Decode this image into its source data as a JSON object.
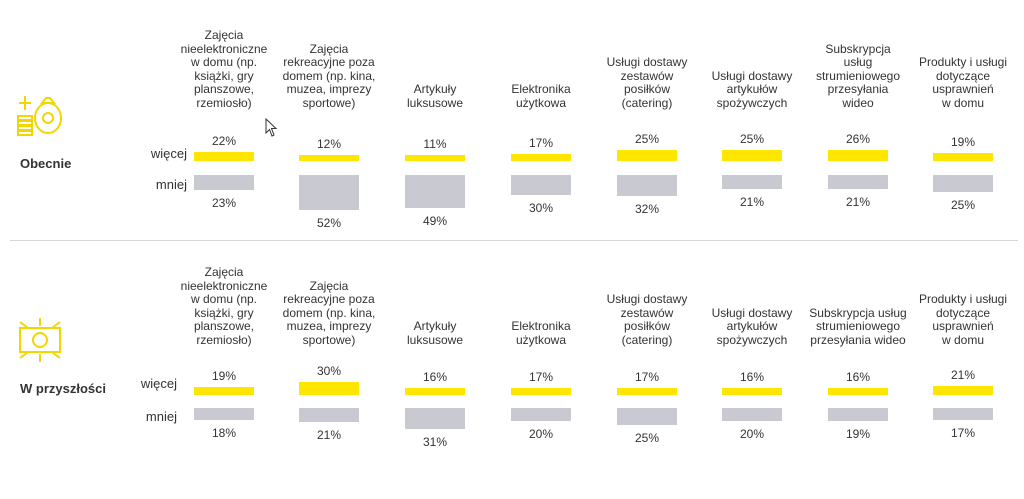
{
  "sections": [
    {
      "label": "Obecnie",
      "icon": "money-bag-coins-icon",
      "row_more": "więcej",
      "row_less": "mniej",
      "categories": [
        "Zajęcia\nnieelektroniczne\nw domu (np.\nksiążki, gry\nplanszowe,\nrzemiosło)",
        "Zajęcia\nrekreacyjne poza\ndomem (np. kina,\nmuzea, imprezy\nsportowe)",
        "Artykuły\nluksusowe",
        "Elektronika\nużytkowa",
        "Usługi dostawy\nzestawów\nposiłków\n(catering)",
        "Usługi dostawy\nartykułów\nspożywczych",
        "Subskrypcja\nusług\nstrumieniowego\nprzesyłania\nwideo",
        "Produkty i usługi\ndotyczące\nusprawnień\nw domu"
      ],
      "more": [
        22,
        12,
        11,
        17,
        25,
        25,
        26,
        19
      ],
      "less": [
        23,
        52,
        49,
        30,
        32,
        21,
        21,
        25
      ],
      "more_labels": [
        "22%",
        "12%",
        "11%",
        "17%",
        "25%",
        "25%",
        "26%",
        "19%"
      ],
      "less_labels": [
        "23%",
        "52%",
        "49%",
        "30%",
        "32%",
        "21%",
        "21%",
        "25%"
      ]
    },
    {
      "label": "W przyszłości",
      "icon": "banknote-icon",
      "row_more": "więcej",
      "row_less": "mniej",
      "categories": [
        "Zajęcia\nnieelektroniczne\nw domu (np.\nksiążki, gry\nplanszowe,\nrzemiosło)",
        "Zajęcia\nrekreacyjne poza\ndomem (np. kina,\nmuzea, imprezy\nsportowe)",
        "Artykuły\nluksusowe",
        "Elektronika\nużytkowa",
        "Usługi dostawy\nzestawów\nposiłków\n(catering)",
        "Usługi dostawy\nartykułów\nspożywczych",
        "Subskrypcja usług\nstrumieniowego\nprzesyłania wideo",
        "Produkty i usługi\ndotyczące\nusprawnień\nw domu"
      ],
      "more": [
        19,
        30,
        16,
        17,
        17,
        16,
        16,
        21
      ],
      "less": [
        18,
        21,
        31,
        20,
        25,
        20,
        19,
        17
      ],
      "more_labels": [
        "19%",
        "30%",
        "16%",
        "17%",
        "17%",
        "16%",
        "16%",
        "21%"
      ],
      "less_labels": [
        "18%",
        "21%",
        "31%",
        "20%",
        "25%",
        "20%",
        "19%",
        "17%"
      ]
    }
  ],
  "chart_data": [
    {
      "type": "bar",
      "categories": [
        "Zajęcia nieelektroniczne w domu (np. książki, gry planszowe, rzemiosło)",
        "Zajęcia rekreacyjne poza domem (np. kina, muzea, imprezy sportowe)",
        "Artykuły luksusowe",
        "Elektronika użytkowa",
        "Usługi dostawy zestawów posiłków (catering)",
        "Usługi dostawy artykułów spożywczych",
        "Subskrypcja usług strumieniowego przesyłania wideo",
        "Produkty i usługi dotyczące usprawnień w domu"
      ],
      "series": [
        {
          "name": "więcej",
          "values": [
            22,
            12,
            11,
            17,
            25,
            25,
            26,
            19
          ]
        },
        {
          "name": "mniej",
          "values": [
            23,
            52,
            49,
            30,
            32,
            21,
            21,
            25
          ]
        }
      ],
      "title": "Obecnie",
      "colors": {
        "więcej": "#ffe600",
        "mniej": "#c9c9d1"
      }
    },
    {
      "type": "bar",
      "categories": [
        "Zajęcia nieelektroniczne w domu (np. książki, gry planszowe, rzemiosło)",
        "Zajęcia rekreacyjne poza domem (np. kina, muzea, imprezy sportowe)",
        "Artykuły luksusowe",
        "Elektronika użytkowa",
        "Usługi dostawy zestawów posiłków (catering)",
        "Usługi dostawy artykułów spożywczych",
        "Subskrypcja usług strumieniowego przesyłania wideo",
        "Produkty i usługi dotyczące usprawnień w domu"
      ],
      "series": [
        {
          "name": "więcej",
          "values": [
            19,
            30,
            16,
            17,
            17,
            16,
            16,
            21
          ]
        },
        {
          "name": "mniej",
          "values": [
            18,
            21,
            31,
            20,
            25,
            20,
            19,
            17
          ]
        }
      ],
      "title": "W przyszłości",
      "colors": {
        "więcej": "#ffe600",
        "mniej": "#c9c9d1"
      }
    }
  ]
}
